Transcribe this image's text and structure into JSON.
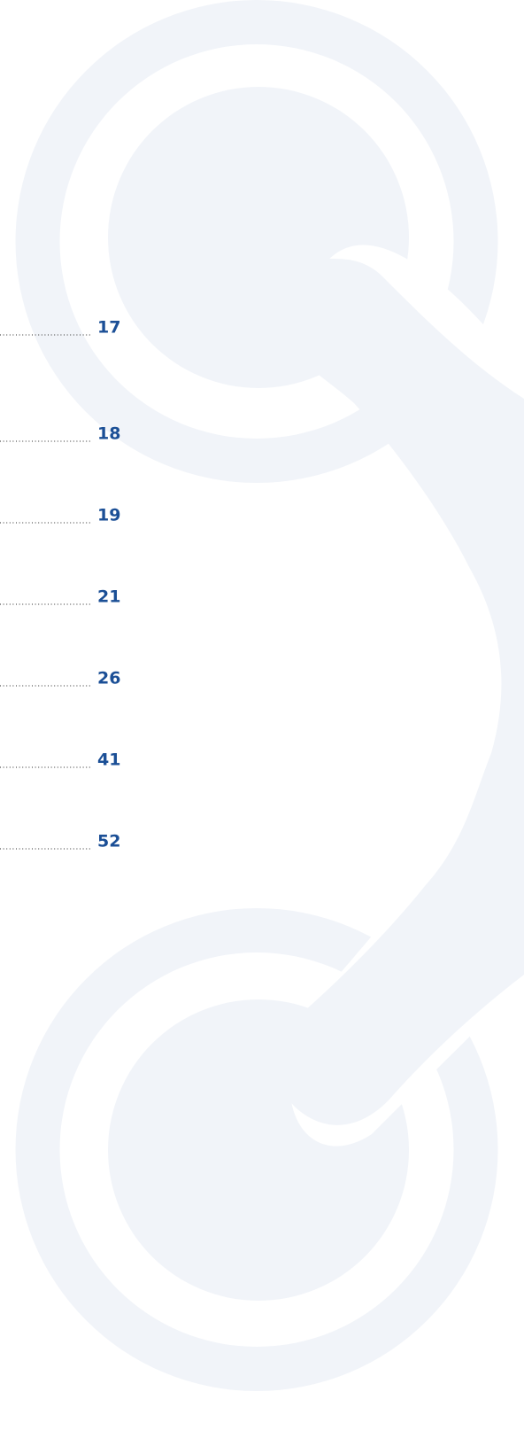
{
  "toc": {
    "page_numbers": [
      17,
      18,
      19,
      21,
      26,
      41,
      52
    ]
  }
}
